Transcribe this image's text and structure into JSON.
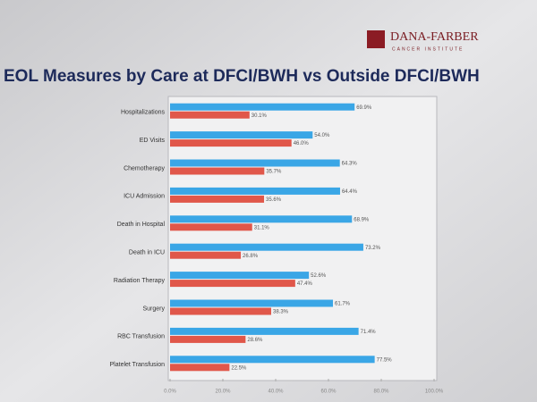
{
  "chart_data": {
    "type": "bar",
    "orientation": "horizontal",
    "title": "EOL Measures by Care at DFCI/BWH vs Outside DFCI/BWH",
    "logo": "DANA-FARBER",
    "logo_subtitle": "CANCER INSTITUTE",
    "categories": [
      "Hospitalizations",
      "ED Visits",
      "Chemotherapy",
      "ICU Admission",
      "Death in Hospital",
      "Death in ICU",
      "Radiation Therapy",
      "Surgery",
      "RBC Transfusion",
      "Platelet Transfusion"
    ],
    "series": [
      {
        "color": "#3aa6e6",
        "values": [
          69.9,
          54.0,
          64.3,
          64.4,
          68.9,
          73.2,
          52.6,
          61.7,
          71.4,
          77.5
        ],
        "value_labels": [
          "69.9%",
          "54.0%",
          "64.3%",
          "64.4%",
          "68.9%",
          "73.2%",
          "52.6%",
          "61.7%",
          "71.4%",
          "77.5%"
        ]
      },
      {
        "color": "#e0574a",
        "values": [
          30.1,
          46.0,
          35.7,
          35.6,
          31.1,
          26.8,
          47.4,
          38.3,
          28.6,
          22.5
        ],
        "value_labels": [
          "30.1%",
          "46.0%",
          "35.7%",
          "35.6%",
          "31.1%",
          "26.8%",
          "47.4%",
          "38.3%",
          "28.6%",
          "22.5%"
        ]
      }
    ],
    "xlim": [
      0,
      100
    ],
    "xticks": [
      {
        "value": 0,
        "label": "0.0%"
      },
      {
        "value": 20,
        "label": "20.0%"
      },
      {
        "value": 40,
        "label": "40.0%"
      },
      {
        "value": 60,
        "label": "60.0%"
      },
      {
        "value": 80,
        "label": "80.0%"
      },
      {
        "value": 100,
        "label": "100.0%"
      }
    ]
  }
}
